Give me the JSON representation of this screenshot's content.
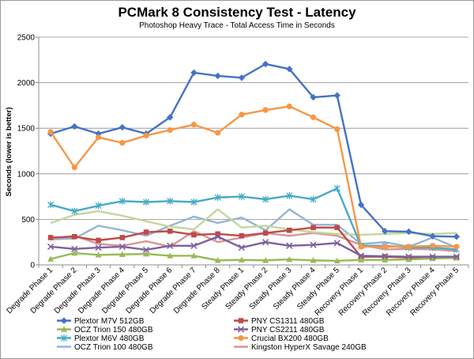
{
  "chart_data": {
    "type": "line",
    "title": "PCMark 8 Consistency Test - Latency",
    "subtitle": "Photoshop Heavy Trace - Total Access Time in Seconds",
    "xlabel": "",
    "ylabel": "Seconds (lower is better)",
    "ylim": [
      0,
      2500
    ],
    "yticks": [
      "0",
      "500",
      "1000",
      "1500",
      "2000",
      "2500"
    ],
    "grid": true,
    "legend_position": "bottom",
    "categories": [
      "Degrade Phase 1",
      "Degrade Phase 2",
      "Degrade Phase 3",
      "Degrade Phase 4",
      "Degrade Phase 5",
      "Degrade Phase 6",
      "Degrade Phase 7",
      "Degrade Phase 8",
      "Steady Phase 1",
      "Steady Phase 2",
      "Steady Phase 3",
      "Steady Phase 4",
      "Steady Phase 5",
      "Recovery Phase 1",
      "Recovery Phase 2",
      "Recovery Phase 3",
      "Recovery Phase 4",
      "Recovery Phase 5"
    ],
    "series": [
      {
        "name": "Plextor M7V 512GB",
        "color": "#4472c4",
        "marker": "diamond",
        "values": [
          1440,
          1520,
          1440,
          1510,
          1440,
          1620,
          2110,
          2075,
          2055,
          2205,
          2150,
          1840,
          1860,
          660,
          370,
          365,
          315,
          310
        ]
      },
      {
        "name": "PNY CS1311 480GB",
        "color": "#be4b48",
        "marker": "square",
        "values": [
          300,
          310,
          270,
          300,
          360,
          370,
          330,
          340,
          320,
          350,
          380,
          410,
          410,
          90,
          90,
          80,
          80,
          80
        ]
      },
      {
        "name": "OCZ Trion 150 480GB",
        "color": "#98b954",
        "marker": "triangle",
        "values": [
          65,
          130,
          110,
          115,
          120,
          100,
          100,
          50,
          55,
          50,
          60,
          50,
          45,
          55,
          55,
          60,
          70,
          75
        ]
      },
      {
        "name": "PNY CS2211 480GB",
        "color": "#7d60a0",
        "marker": "x",
        "values": [
          200,
          175,
          190,
          200,
          165,
          210,
          210,
          310,
          190,
          250,
          210,
          220,
          240,
          100,
          95,
          90,
          90,
          90
        ]
      },
      {
        "name": "Plextor M6V 480GB",
        "color": "#46aac5",
        "marker": "star",
        "values": [
          660,
          590,
          650,
          700,
          690,
          700,
          690,
          740,
          750,
          720,
          760,
          720,
          840,
          210,
          210,
          190,
          190,
          170
        ]
      },
      {
        "name": "Crucial BX200 480GB",
        "color": "#f79646",
        "marker": "circle",
        "values": [
          1460,
          1070,
          1400,
          1340,
          1420,
          1480,
          1540,
          1450,
          1650,
          1700,
          1740,
          1620,
          1490,
          200,
          200,
          200,
          210,
          200
        ]
      },
      {
        "name": "OCZ Trion 100 480GB",
        "color": "#95b3d7",
        "marker": "none",
        "values": [
          280,
          290,
          430,
          380,
          320,
          430,
          530,
          460,
          520,
          380,
          610,
          440,
          440,
          230,
          250,
          200,
          300,
          190
        ]
      },
      {
        "name": "Kingston HyperX Savage 240GB",
        "color": "#d99694",
        "marker": "none",
        "values": [
          290,
          320,
          230,
          210,
          260,
          200,
          370,
          250,
          300,
          350,
          320,
          350,
          320,
          220,
          170,
          175,
          170,
          150
        ]
      },
      {
        "name": "",
        "color": "#c4d79b",
        "marker": "none",
        "values": [
          460,
          550,
          590,
          540,
          480,
          420,
          390,
          610,
          410,
          430,
          390,
          360,
          340,
          330,
          340,
          350,
          340,
          350
        ]
      }
    ]
  }
}
